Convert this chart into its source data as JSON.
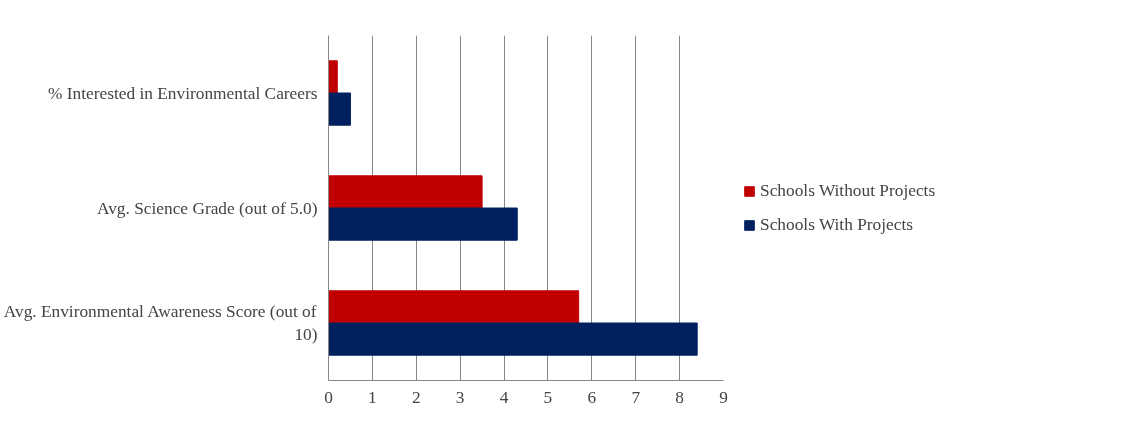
{
  "chart_data": {
    "type": "bar",
    "orientation": "horizontal",
    "categories": [
      "% Interested in Environmental Careers",
      "Avg. Science Grade (out of 5.0)",
      "Avg. Environmental Awareness Score (out of 10)"
    ],
    "series": [
      {
        "name": "Schools Without Projects",
        "color": "#c00000",
        "values": [
          0.2,
          3.5,
          5.7
        ]
      },
      {
        "name": "Schools With Projects",
        "color": "#002060",
        "values": [
          0.5,
          4.3,
          8.4
        ]
      }
    ],
    "xlim": [
      0,
      9
    ],
    "xticks": [
      0,
      1,
      2,
      3,
      4,
      5,
      6,
      7,
      8,
      9
    ],
    "grid": "x",
    "legend": "right"
  }
}
